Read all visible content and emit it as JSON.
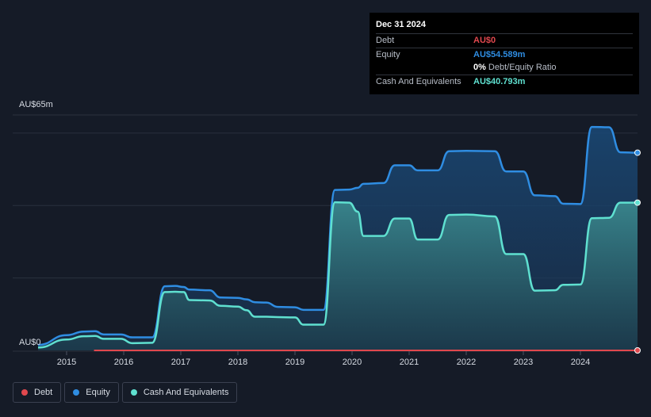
{
  "tooltip": {
    "date": "Dec 31 2024",
    "debt_label": "Debt",
    "debt_value": "AU$0",
    "equity_label": "Equity",
    "equity_value": "AU$54.589m",
    "ratio_value": "0%",
    "ratio_label": "Debt/Equity Ratio",
    "cash_label": "Cash And Equivalents",
    "cash_value": "AU$40.793m"
  },
  "legend": {
    "debt": "Debt",
    "equity": "Equity",
    "cash": "Cash And Equivalents"
  },
  "colors": {
    "debt": "#e0484e",
    "equity": "#2f8de2",
    "cash": "#5fe0d0",
    "background": "#151b27"
  },
  "chart_data": {
    "type": "area",
    "ylim": [
      0,
      65
    ],
    "y_labels": [
      "AU$65m",
      "AU$0"
    ],
    "x_tick_labels": [
      "2015",
      "2016",
      "2017",
      "2018",
      "2019",
      "2020",
      "2021",
      "2022",
      "2023",
      "2024"
    ],
    "series": [
      {
        "name": "Equity",
        "points": [
          [
            2014.5,
            1.5
          ],
          [
            2015.0,
            4.2
          ],
          [
            2015.3,
            5.2
          ],
          [
            2015.5,
            5.3
          ],
          [
            2015.65,
            4.4
          ],
          [
            2015.95,
            4.4
          ],
          [
            2016.15,
            3.6
          ],
          [
            2016.5,
            3.6
          ],
          [
            2016.72,
            17.7
          ],
          [
            2016.9,
            17.8
          ],
          [
            2017.05,
            17.5
          ],
          [
            2017.15,
            16.8
          ],
          [
            2017.5,
            16.6
          ],
          [
            2017.7,
            14.6
          ],
          [
            2018.0,
            14.5
          ],
          [
            2018.15,
            14.1
          ],
          [
            2018.3,
            13.3
          ],
          [
            2018.5,
            13.2
          ],
          [
            2018.7,
            12.0
          ],
          [
            2019.0,
            11.9
          ],
          [
            2019.15,
            11.2
          ],
          [
            2019.5,
            11.2
          ],
          [
            2019.7,
            44.3
          ],
          [
            2019.95,
            44.4
          ],
          [
            2020.1,
            44.9
          ],
          [
            2020.2,
            46.0
          ],
          [
            2020.55,
            46.2
          ],
          [
            2020.75,
            51.1
          ],
          [
            2021.0,
            51.1
          ],
          [
            2021.15,
            49.7
          ],
          [
            2021.5,
            49.7
          ],
          [
            2021.7,
            55.0
          ],
          [
            2022.0,
            55.1
          ],
          [
            2022.5,
            55.0
          ],
          [
            2022.7,
            49.4
          ],
          [
            2023.0,
            49.4
          ],
          [
            2023.2,
            42.8
          ],
          [
            2023.55,
            42.6
          ],
          [
            2023.7,
            40.5
          ],
          [
            2024.0,
            40.4
          ],
          [
            2024.2,
            61.7
          ],
          [
            2024.5,
            61.6
          ],
          [
            2024.7,
            54.7
          ],
          [
            2025.0,
            54.589
          ]
        ]
      },
      {
        "name": "Cash And Equivalents",
        "points": [
          [
            2014.5,
            0.8
          ],
          [
            2015.0,
            3.0
          ],
          [
            2015.3,
            3.9
          ],
          [
            2015.5,
            4.0
          ],
          [
            2015.65,
            3.2
          ],
          [
            2015.95,
            3.2
          ],
          [
            2016.15,
            2.0
          ],
          [
            2016.5,
            2.1
          ],
          [
            2016.72,
            16.1
          ],
          [
            2016.9,
            16.2
          ],
          [
            2017.05,
            16.1
          ],
          [
            2017.15,
            13.9
          ],
          [
            2017.5,
            13.8
          ],
          [
            2017.7,
            12.3
          ],
          [
            2018.0,
            12.1
          ],
          [
            2018.15,
            11.1
          ],
          [
            2018.3,
            9.3
          ],
          [
            2018.5,
            9.3
          ],
          [
            2018.7,
            9.2
          ],
          [
            2019.0,
            9.1
          ],
          [
            2019.15,
            7.1
          ],
          [
            2019.5,
            7.1
          ],
          [
            2019.7,
            40.9
          ],
          [
            2019.95,
            40.8
          ],
          [
            2020.1,
            38.3
          ],
          [
            2020.2,
            31.6
          ],
          [
            2020.55,
            31.6
          ],
          [
            2020.75,
            36.4
          ],
          [
            2021.0,
            36.4
          ],
          [
            2021.15,
            30.6
          ],
          [
            2021.5,
            30.6
          ],
          [
            2021.7,
            37.4
          ],
          [
            2022.0,
            37.5
          ],
          [
            2022.5,
            37.0
          ],
          [
            2022.7,
            26.6
          ],
          [
            2023.0,
            26.6
          ],
          [
            2023.2,
            16.5
          ],
          [
            2023.55,
            16.6
          ],
          [
            2023.7,
            18.1
          ],
          [
            2024.0,
            18.2
          ],
          [
            2024.2,
            36.5
          ],
          [
            2024.5,
            36.6
          ],
          [
            2024.7,
            40.8
          ],
          [
            2025.0,
            40.793
          ]
        ]
      },
      {
        "name": "Debt",
        "points": [
          [
            2015.48,
            0
          ],
          [
            2025.0,
            0
          ]
        ]
      }
    ]
  }
}
